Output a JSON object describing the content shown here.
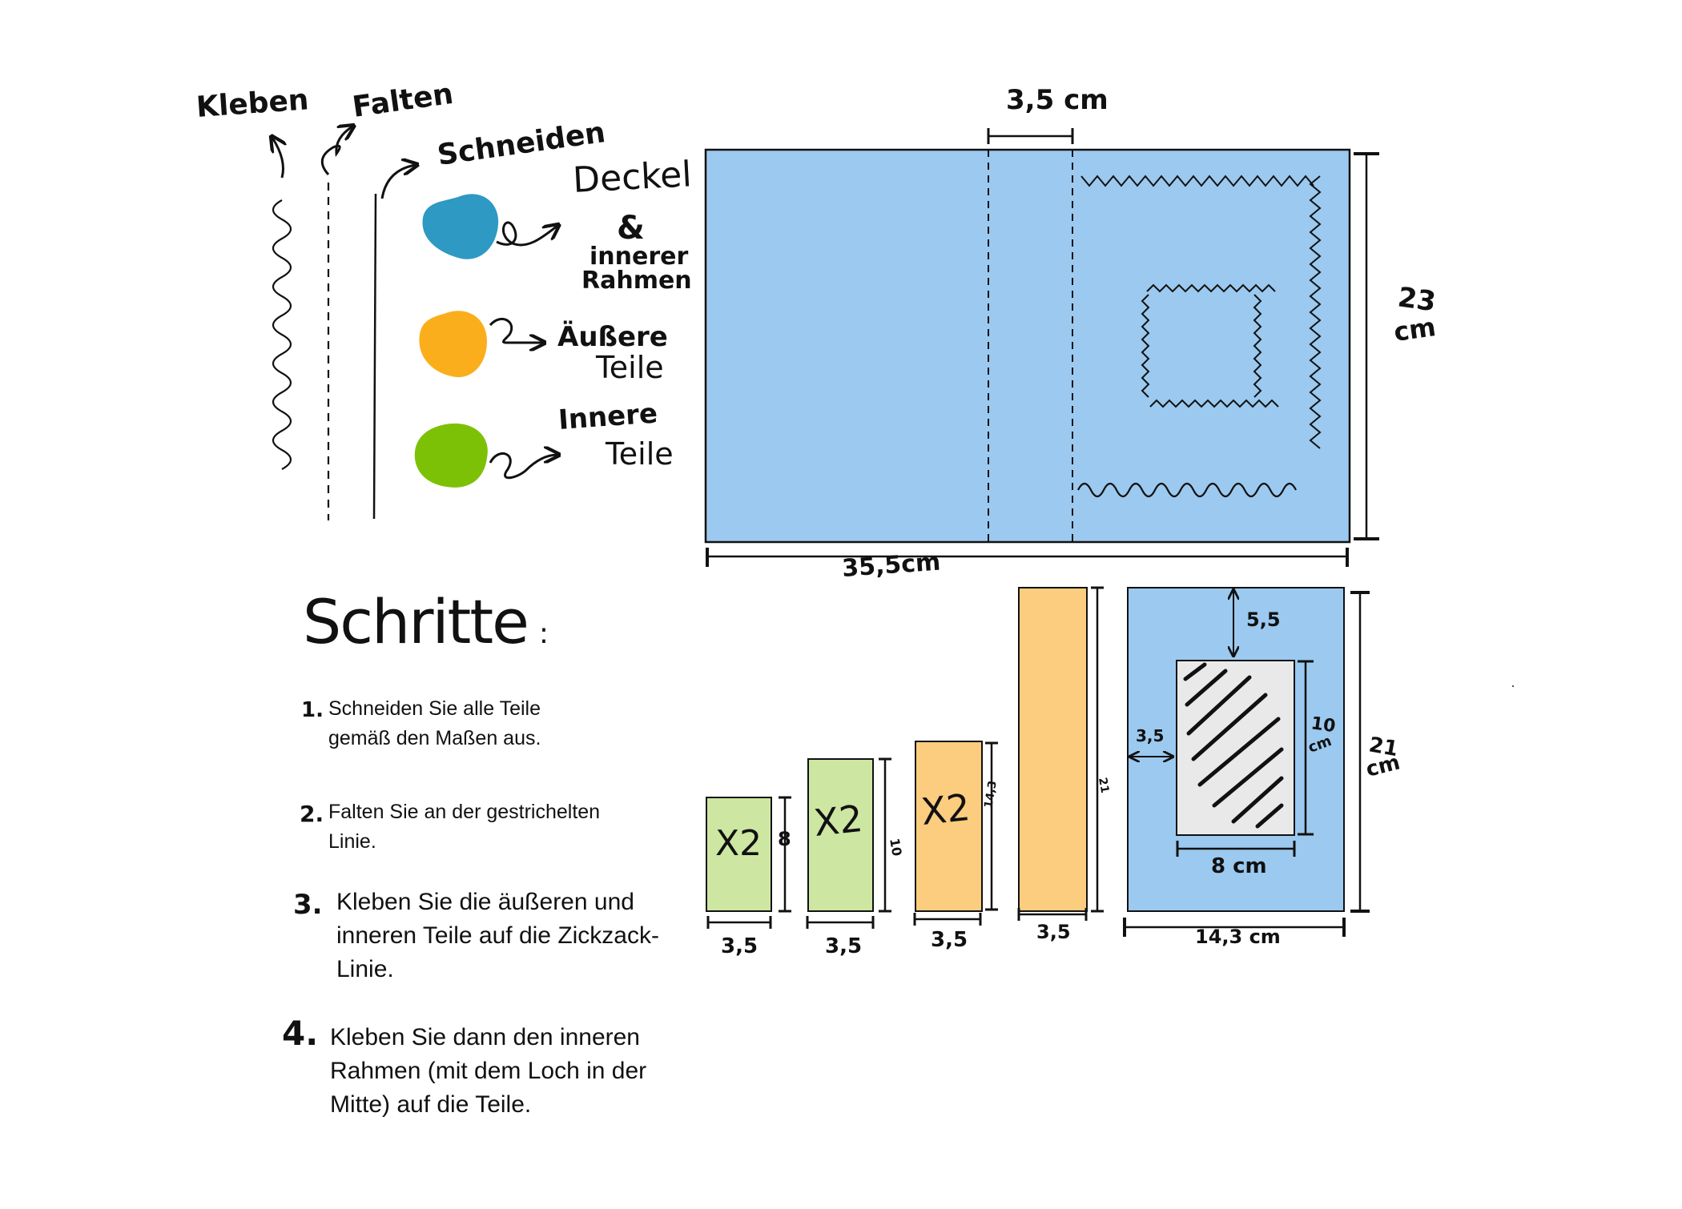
{
  "colors": {
    "cover_blue": "#9BC9EF",
    "legend_blue": "#2E99C2",
    "legend_orange": "#FBAE1C",
    "legend_green": "#7DC107",
    "green_piece": "#CDE6A2",
    "orange_piece": "#FCCD7E",
    "window_gray": "#E9E9E9"
  },
  "legend": {
    "glue_label": "Kleben",
    "fold_label": "Falten",
    "cut_label": "Schneiden",
    "blue_line1": "Deckel",
    "blue_amp": "&",
    "blue_line2": "innerer",
    "blue_line3": "Rahmen",
    "orange_line1": "Äußere",
    "orange_line2": "Teile",
    "green_line1": "Innere",
    "green_line2": "Teile"
  },
  "cover": {
    "spine_label": "3,5 cm",
    "height_label1": "23",
    "height_label2": "cm",
    "width_label": "35,5cm"
  },
  "pieces": {
    "p1": {
      "count": "X2",
      "height": "8",
      "width": "3,5"
    },
    "p2": {
      "count": "X2",
      "height": "10",
      "width": "3,5"
    },
    "p3": {
      "count": "X2",
      "height": "14,3",
      "width": "3,5"
    },
    "p4": {
      "height": "21",
      "width": "3,5"
    },
    "frame": {
      "top_margin": "5,5",
      "left_margin": "3,5",
      "window_height1": "10",
      "window_height2": "cm",
      "window_width": "8 cm",
      "height1": "21",
      "height2": "cm",
      "width": "14,3 cm"
    }
  },
  "steps": {
    "title": "Schritte",
    "items": [
      {
        "num": "1.",
        "text_line1": "Schneiden Sie alle Teile",
        "text_line2": "gemäß den Maßen aus.",
        "text_line3": ""
      },
      {
        "num": "2.",
        "text_line1": "Falten Sie an der gestrichelten",
        "text_line2": "Linie.",
        "text_line3": ""
      },
      {
        "num": "3.",
        "text_line1": "Kleben Sie die äußeren und",
        "text_line2": "inneren Teile auf die Zickzack-",
        "text_line3": "Linie."
      },
      {
        "num": "4.",
        "text_line1": "Kleben Sie dann den inneren",
        "text_line2": "Rahmen (mit dem Loch in der",
        "text_line3": "Mitte) auf die Teile."
      }
    ]
  }
}
